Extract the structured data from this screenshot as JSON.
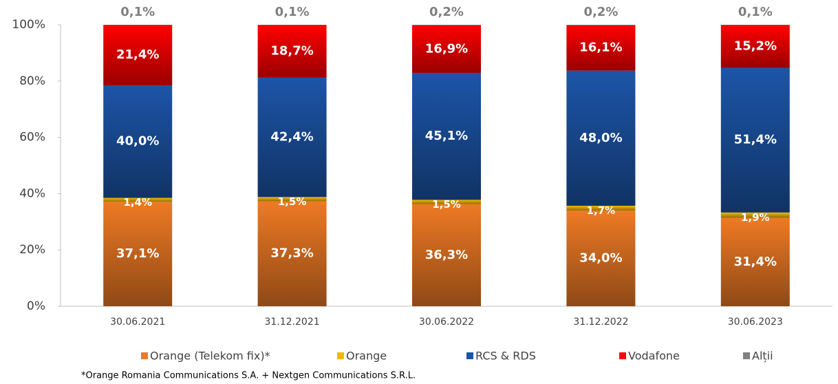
{
  "chart_data": {
    "type": "stacked_bar",
    "categories": [
      "30.06.2021",
      "31.12.2021",
      "30.06.2022",
      "31.12.2022",
      "30.06.2023"
    ],
    "series": [
      {
        "name": "Orange (Telekom fix)*",
        "color": "#ee7a24",
        "values": [
          37.1,
          37.3,
          36.3,
          34.0,
          31.4
        ],
        "value_labels": [
          "37,1%",
          "37,3%",
          "36,3%",
          "34,0%",
          "31,4%"
        ]
      },
      {
        "name": "Orange",
        "color": "#f2b705",
        "values": [
          1.4,
          1.5,
          1.5,
          1.7,
          1.9
        ],
        "value_labels": [
          "1,4%",
          "1,5%",
          "1,5%",
          "1,7%",
          "1,9%"
        ]
      },
      {
        "name": "RCS & RDS",
        "color": "#1c55a8",
        "values": [
          40.0,
          42.4,
          45.1,
          48.0,
          51.4
        ],
        "value_labels": [
          "40,0%",
          "42,4%",
          "45,1%",
          "48,0%",
          "51,4%"
        ]
      },
      {
        "name": "Vodafone",
        "color": "#ff0000",
        "values": [
          21.4,
          18.7,
          16.9,
          16.1,
          15.2
        ],
        "value_labels": [
          "21,4%",
          "18,7%",
          "16,9%",
          "16,1%",
          "15,2%"
        ]
      },
      {
        "name": "Alții",
        "color": "#808080",
        "values": [
          0.1,
          0.1,
          0.2,
          0.2,
          0.1
        ],
        "value_labels": [
          "0,1%",
          "0,1%",
          "0,2%",
          "0,2%",
          "0,1%"
        ]
      }
    ],
    "ylim": [
      0,
      100
    ],
    "yticks": [
      {
        "value": 0,
        "label": "0%"
      },
      {
        "value": 20,
        "label": "20%"
      },
      {
        "value": 40,
        "label": "40%"
      },
      {
        "value": 60,
        "label": "60%"
      },
      {
        "value": 80,
        "label": "80%"
      },
      {
        "value": 100,
        "label": "100%"
      }
    ],
    "legend": "bottom",
    "footnote": "*Orange Romania Communications S.A. + Nextgen Communications S.R.L."
  }
}
